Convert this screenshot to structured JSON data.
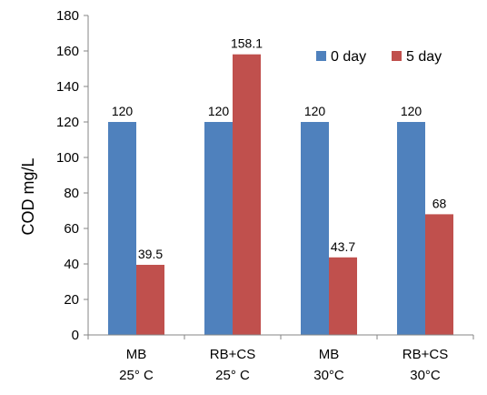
{
  "chart_data": {
    "type": "bar",
    "categories": [
      [
        "MB",
        "25° C"
      ],
      [
        "RB+CS",
        "25° C"
      ],
      [
        "MB",
        "30°C"
      ],
      [
        "RB+CS",
        "30°C"
      ]
    ],
    "series": [
      {
        "name": "0 day",
        "color": "#4F81BD",
        "values": [
          120,
          120,
          120,
          120
        ],
        "labels": [
          "120",
          "120",
          "120",
          "120"
        ]
      },
      {
        "name": "5 day",
        "color": "#C0504D",
        "values": [
          39.5,
          158.1,
          43.7,
          68
        ],
        "labels": [
          "39.5",
          "158.1",
          "43.7",
          "68"
        ]
      }
    ],
    "ylabel": "COD mg/L",
    "xlabel": "",
    "title": "",
    "ylim": [
      0,
      180
    ],
    "yticks": [
      0,
      20,
      40,
      60,
      80,
      100,
      120,
      140,
      160,
      180
    ],
    "grid": false,
    "legend_position": "top-right"
  }
}
